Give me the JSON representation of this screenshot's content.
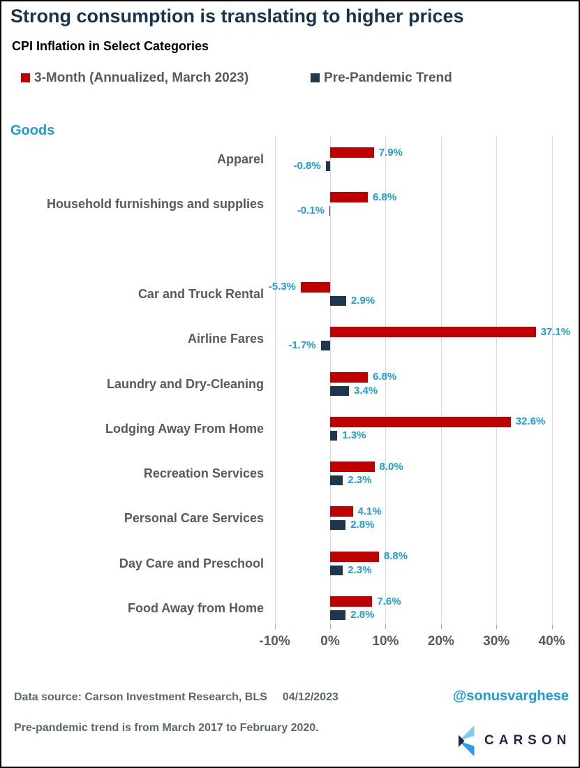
{
  "header": {
    "title": "Strong consumption is translating to higher prices",
    "subtitle": "CPI Inflation in Select Categories"
  },
  "legend": {
    "items": [
      {
        "label": "3-Month (Annualized, March 2023)",
        "color": "#C00000"
      },
      {
        "label": "Pre-Pandemic Trend",
        "color": "#1D3A52"
      }
    ]
  },
  "chart_data": {
    "type": "bar",
    "orientation": "horizontal",
    "title": "CPI Inflation in Select Categories",
    "section_label": "Goods",
    "section_label_color": "#1B9CDE",
    "categories": [
      "Apparel",
      "Household furnishings and supplies",
      "",
      "Car and Truck Rental",
      "Airline Fares",
      "Laundry and Dry-Cleaning",
      "Lodging Away From Home",
      "Recreation Services",
      "Personal Care Services",
      "Day Care and Preschool",
      "Food Away from Home"
    ],
    "series": [
      {
        "name": "3-Month (Annualized, March 2023)",
        "color": "#C00000",
        "values": [
          7.9,
          6.8,
          null,
          -5.3,
          37.1,
          6.8,
          32.6,
          8.0,
          4.1,
          8.8,
          7.6
        ],
        "labels": [
          "7.9%",
          "6.8%",
          null,
          "-5.3%",
          "37.1%",
          "6.8%",
          "32.6%",
          "8.0%",
          "4.1%",
          "8.8%",
          "7.6%"
        ]
      },
      {
        "name": "Pre-Pandemic Trend",
        "color": "#1C374F",
        "values": [
          -0.8,
          -0.1,
          null,
          2.9,
          -1.7,
          3.4,
          1.3,
          2.3,
          2.8,
          2.3,
          2.8
        ],
        "labels": [
          "-0.8%",
          "-0.1%",
          null,
          "2.9%",
          "-1.7%",
          "3.4%",
          "1.3%",
          "2.3%",
          "2.8%",
          "2.3%",
          "2.8%"
        ]
      }
    ],
    "x_axis": {
      "ticks": [
        "-10%",
        "0%",
        "10%",
        "20%",
        "30%",
        "40%"
      ],
      "tick_values": [
        -10,
        0,
        10,
        20,
        30,
        40
      ],
      "min": -10,
      "max": 40
    },
    "value_label_color": "#1B9CDE",
    "grid": true,
    "legend_position": "top"
  },
  "footer": {
    "source": "Data source: Carson Investment Research, BLS",
    "date": "04/12/2023",
    "handle": "@sonusvarghese",
    "handle_color": "#1B9CDE",
    "note": "Pre-pandemic trend is from March 2017 to February 2020.",
    "brand": "CARSON"
  },
  "colors": {
    "title": "#17344F",
    "red_bar": "#C00000",
    "navy_bar": "#1C374F",
    "accent_blue": "#1B9CDE",
    "gray_text": "#595959",
    "gridline": "#D9D9D9"
  }
}
